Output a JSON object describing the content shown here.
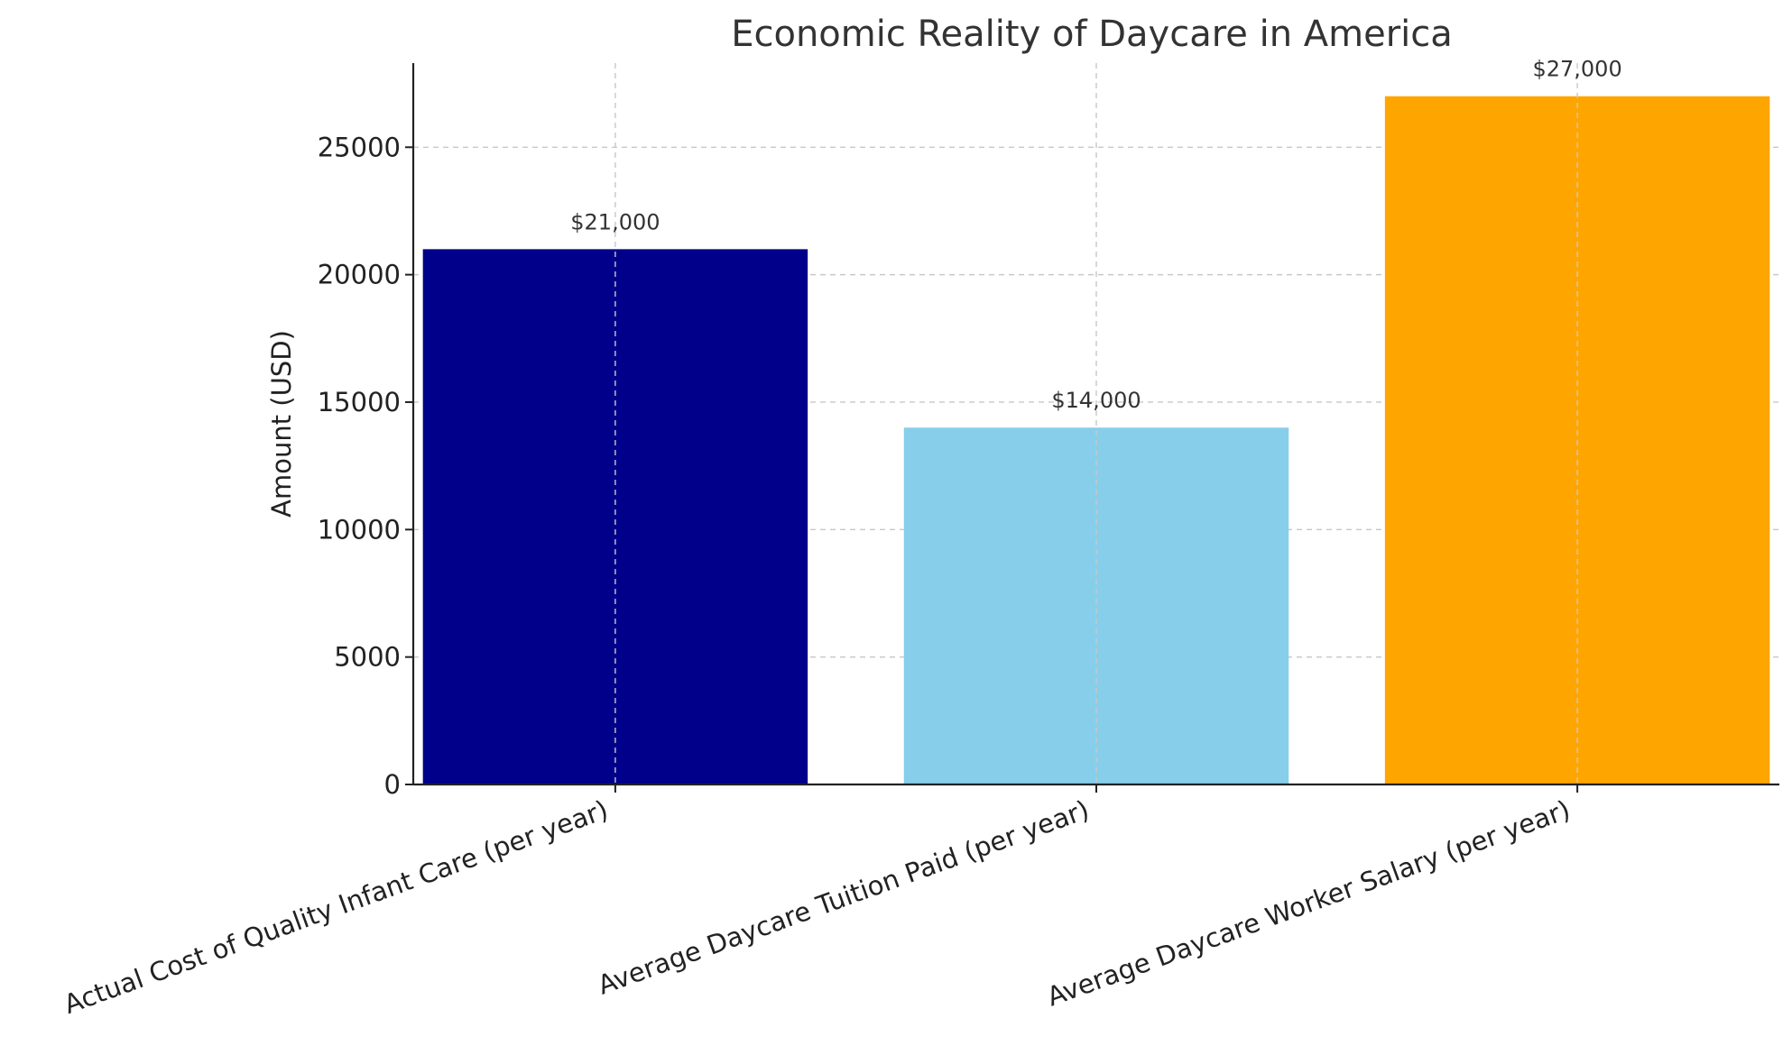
{
  "chart_data": {
    "type": "bar",
    "title": "Economic Reality of Daycare in America",
    "xlabel": "",
    "ylabel": "Amount (USD)",
    "ylim": [
      0,
      28300
    ],
    "yticks": [
      0,
      5000,
      10000,
      15000,
      20000,
      25000
    ],
    "grid": true,
    "categories": [
      "Actual Cost of Quality Infant Care (per year)",
      "Average Daycare Tuition Paid (per year)",
      "Average Daycare Worker Salary (per year)"
    ],
    "values": [
      21000,
      14000,
      27000
    ],
    "bar_colors": [
      "#00008b",
      "#87ceeb",
      "#ffa500"
    ],
    "data_labels": [
      "$21,000",
      "$14,000",
      "$27,000"
    ]
  }
}
